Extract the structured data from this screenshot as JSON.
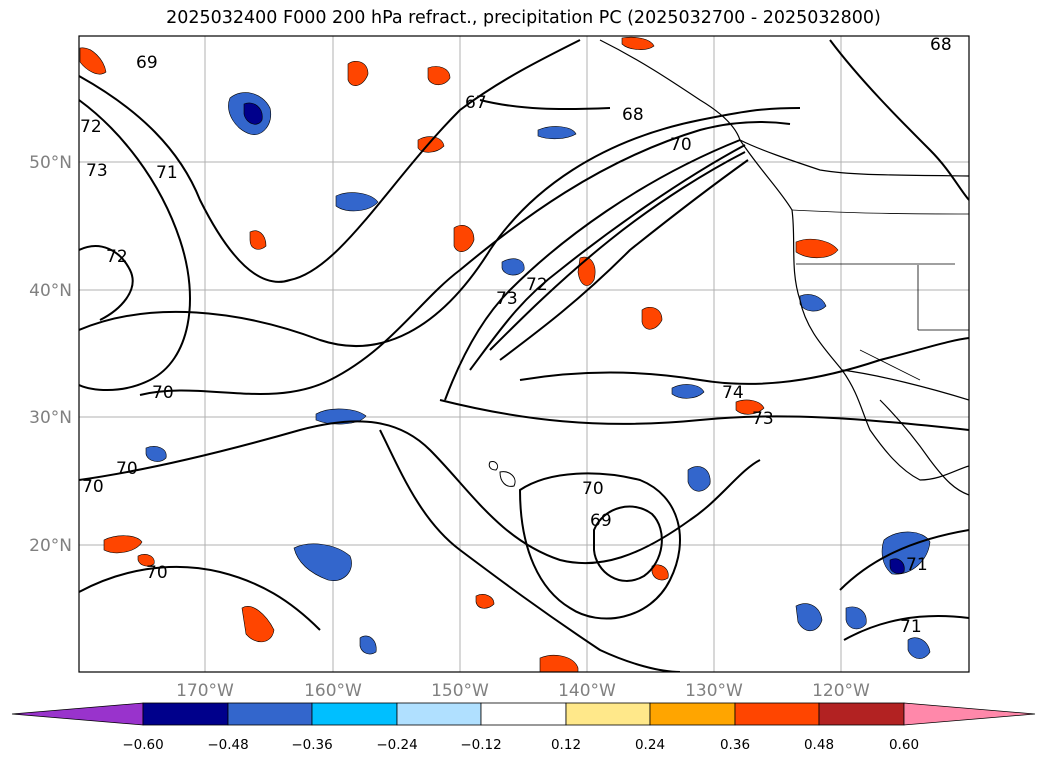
{
  "title": "2025032400 F000 200 hPa refract., precipitation PC (2025032700 - 2025032800)",
  "map": {
    "lon_labels": [
      "170°W",
      "160°W",
      "150°W",
      "140°W",
      "130°W",
      "120°W"
    ],
    "lat_labels": [
      "50°N",
      "40°N",
      "30°N",
      "20°N"
    ],
    "contour_labels": [
      "69",
      "72",
      "73",
      "71",
      "72",
      "67",
      "68",
      "70",
      "73",
      "72",
      "70",
      "70",
      "70",
      "70",
      "74",
      "73",
      "70",
      "69",
      "71",
      "68",
      "71"
    ]
  },
  "colorbar": {
    "ticks": [
      "−0.60",
      "−0.48",
      "−0.36",
      "−0.24",
      "−0.12",
      "0.12",
      "0.24",
      "0.36",
      "0.48",
      "0.60"
    ],
    "colors": [
      "#9933cc",
      "#00008b",
      "#3366cc",
      "#00bfff",
      "#b0e0ff",
      "#ffffff",
      "#ffe88a",
      "#ffa500",
      "#ff4500",
      "#b22222",
      "#ff88aa"
    ]
  }
}
